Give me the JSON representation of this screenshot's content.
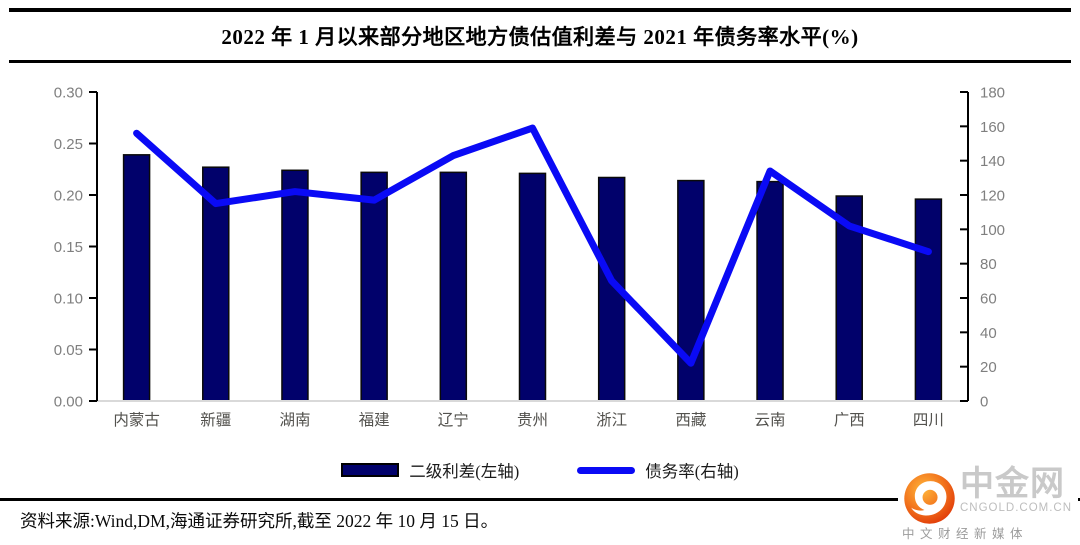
{
  "header": {
    "title": "2022 年 1 月以来部分地区地方债估值利差与 2021 年债务率水平(%)"
  },
  "chart_data": {
    "type": "combo",
    "categories": [
      "内蒙古",
      "新疆",
      "湖南",
      "福建",
      "辽宁",
      "贵州",
      "浙江",
      "西藏",
      "云南",
      "广西",
      "四川"
    ],
    "series": [
      {
        "name": "二级利差(左轴)",
        "type": "bar",
        "axis": "left",
        "color": "#01016B",
        "values": [
          0.239,
          0.227,
          0.224,
          0.222,
          0.222,
          0.221,
          0.217,
          0.214,
          0.213,
          0.199,
          0.196
        ]
      },
      {
        "name": "债务率(右轴)",
        "type": "line",
        "axis": "right",
        "color": "#0A0AF5",
        "values": [
          156,
          115,
          122,
          117,
          143,
          159,
          70,
          22,
          134,
          102,
          87
        ]
      }
    ],
    "left_axis": {
      "min": 0,
      "max": 0.3,
      "step": 0.05,
      "ticks": [
        "0.00",
        "0.05",
        "0.10",
        "0.15",
        "0.20",
        "0.25",
        "0.30"
      ]
    },
    "right_axis": {
      "min": 0,
      "max": 180,
      "step": 20,
      "ticks": [
        "0",
        "20",
        "40",
        "60",
        "80",
        "100",
        "120",
        "140",
        "160",
        "180"
      ]
    },
    "grid": false,
    "legend_position": "bottom",
    "axis_color": "#000000",
    "baseline_color": "#d9d9d9",
    "tick_text_color": "#7f7f7f",
    "category_text_color": "#53524e",
    "bar_outline_color": "#0a0a0a"
  },
  "footer": {
    "source_text": "资料来源:Wind,DM,海通证券研究所,截至 2022 年 10 月 15 日。"
  },
  "logo": {
    "name": "中金网",
    "domain": "CNGOLD.COM.CN",
    "tagline": "中文财经新媒体"
  }
}
